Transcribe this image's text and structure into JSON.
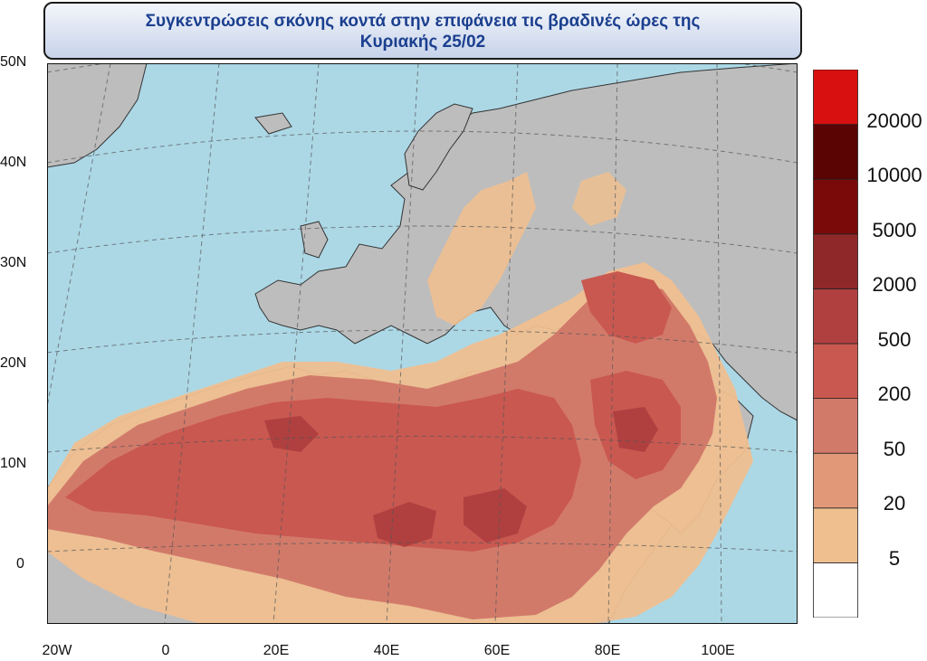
{
  "title": {
    "line1": "Συγκεντρώσεις σκόνης κοντά στην επιφάνεια τις βραδινές ώρες της",
    "line2": "Κυριακής 25/02"
  },
  "map": {
    "ocean_color": "#acd8e6",
    "land_color": "#bdbdbd",
    "border_color": "#333333",
    "lat_labels": [
      "50N",
      "40N",
      "30N",
      "20N",
      "10N",
      "0"
    ],
    "lon_labels": [
      "20W",
      "0",
      "20E",
      "40E",
      "60E",
      "80E",
      "100E"
    ]
  },
  "legend": {
    "levels": [
      "5",
      "20",
      "50",
      "200",
      "500",
      "2000",
      "5000",
      "10000",
      "20000"
    ],
    "colors": [
      "#ffffff",
      "#efbf90",
      "#e09878",
      "#d27a6a",
      "#c95850",
      "#b04040",
      "#8f2828",
      "#7a0a0a",
      "#5a0404",
      "#d81010"
    ]
  }
}
